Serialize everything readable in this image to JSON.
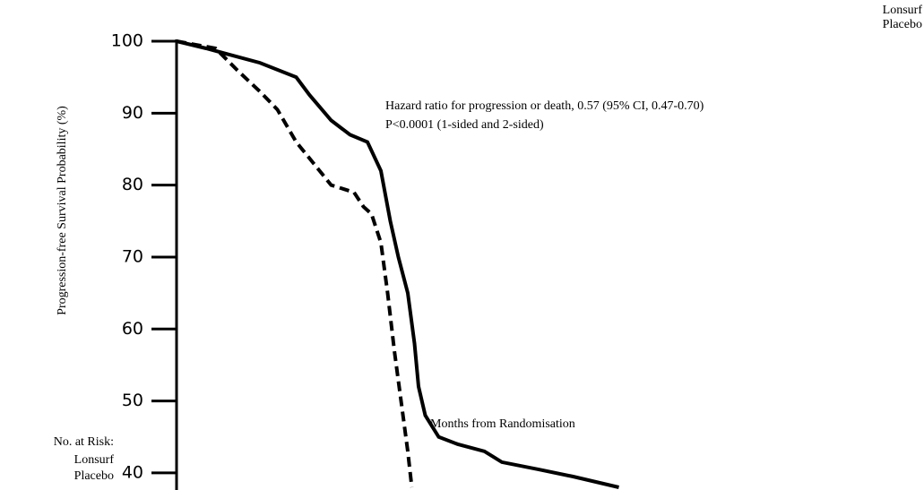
{
  "chart_data": {
    "type": "line",
    "y_label": "Progression-free Survival Probability (%)",
    "x_label": "Months from Randomisation",
    "annotation": [
      "Hazard ratio for progression or death, 0.57 (95% CI, 0.47-0.70)",
      "P<0.0001 (1-sided and 2-sided)"
    ],
    "risk_table_label": "No. at Risk:",
    "legend_position": "upper right",
    "xlim": [
      0,
      5.5
    ],
    "ylim": [
      38,
      100
    ],
    "yticks": [
      40,
      50,
      60,
      70,
      80,
      90,
      100
    ],
    "series": [
      {
        "name": "Lonsurf",
        "color": "#000000",
        "linestyle": "solid",
        "x": [
          0,
          0.22,
          0.42,
          0.62,
          0.89,
          0.99,
          1.15,
          1.29,
          1.42,
          1.52,
          1.59,
          1.65,
          1.72,
          1.77,
          1.8,
          1.85,
          1.95,
          2.09,
          2.29,
          2.42,
          2.69,
          2.95,
          3.29
        ],
        "values": [
          100,
          99,
          98,
          97,
          95,
          92.5,
          89,
          87,
          86,
          82,
          75,
          70,
          65,
          58,
          52,
          48,
          45,
          44,
          43,
          41.5,
          40.5,
          39.5,
          38
        ]
      },
      {
        "name": "Placebo",
        "color": "#000000",
        "linestyle": "dashed",
        "x": [
          0,
          0.29,
          0.45,
          0.62,
          0.75,
          0.89,
          1.02,
          1.15,
          1.32,
          1.39,
          1.45,
          1.52,
          1.57,
          1.62,
          1.67,
          1.72,
          1.75
        ],
        "values": [
          100,
          99,
          96,
          93,
          90.5,
          86,
          83,
          80,
          79,
          77,
          76,
          72,
          65,
          57,
          50,
          43,
          38
        ]
      }
    ]
  }
}
